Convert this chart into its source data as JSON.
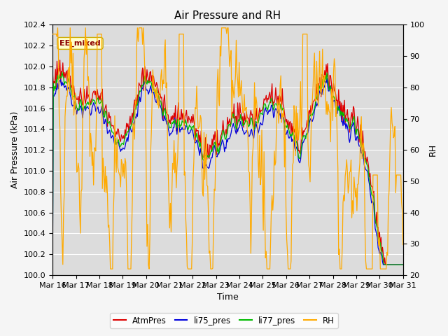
{
  "title": "Air Pressure and RH",
  "xlabel": "Time",
  "ylabel_left": "Air Pressure (kPa)",
  "ylabel_right": "RH",
  "ylim_left": [
    100.0,
    102.4
  ],
  "ylim_right": [
    20,
    100
  ],
  "yticks_left": [
    100.0,
    100.2,
    100.4,
    100.6,
    100.8,
    101.0,
    101.2,
    101.4,
    101.6,
    101.8,
    102.0,
    102.2,
    102.4
  ],
  "yticks_right": [
    20,
    30,
    40,
    50,
    60,
    70,
    80,
    90,
    100
  ],
  "xtick_labels": [
    "Mar 16",
    "Mar 17",
    "Mar 18",
    "Mar 19",
    "Mar 20",
    "Mar 21",
    "Mar 22",
    "Mar 23",
    "Mar 24",
    "Mar 25",
    "Mar 26",
    "Mar 27",
    "Mar 28",
    "Mar 29",
    "Mar 30",
    "Mar 31"
  ],
  "legend_labels": [
    "AtmPres",
    "li75_pres",
    "li77_pres",
    "RH"
  ],
  "line_colors": [
    "#dd0000",
    "#0000dd",
    "#00bb00",
    "#ffaa00"
  ],
  "annotation_text": "EE_mixed",
  "plot_bg_color": "#dcdcdc",
  "fig_bg_color": "#f5f5f5",
  "title_fontsize": 11,
  "axis_label_fontsize": 9,
  "tick_fontsize": 8,
  "n_points": 480
}
